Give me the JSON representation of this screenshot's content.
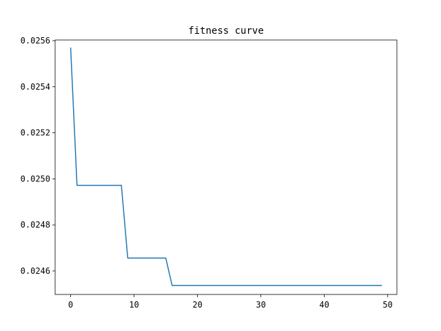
{
  "chart_data": {
    "type": "line",
    "title": "fitness curve",
    "xlabel": "",
    "ylabel": "",
    "xlim": [
      -2.45,
      51.45
    ],
    "ylim": [
      0.024498,
      0.025603
    ],
    "x_ticks": [
      0,
      10,
      20,
      30,
      40,
      50
    ],
    "x_tick_labels": [
      "0",
      "10",
      "20",
      "30",
      "40",
      "50"
    ],
    "y_ticks": [
      0.0246,
      0.0248,
      0.025,
      0.0252,
      0.0254,
      0.0256
    ],
    "y_tick_labels": [
      "0.0246",
      "0.0248",
      "0.0250",
      "0.0252",
      "0.0254",
      "0.0256"
    ],
    "grid": false,
    "series": [
      {
        "color": "#1f77b4",
        "x": [
          0,
          1,
          2,
          3,
          4,
          5,
          6,
          7,
          8,
          9,
          10,
          11,
          12,
          13,
          14,
          15,
          16,
          17,
          18,
          19,
          20,
          21,
          22,
          23,
          24,
          25,
          26,
          27,
          28,
          29,
          30,
          31,
          32,
          33,
          34,
          35,
          36,
          37,
          38,
          39,
          40,
          41,
          42,
          43,
          44,
          45,
          46,
          47,
          48,
          49
        ],
        "y": [
          0.025568,
          0.024972,
          0.024972,
          0.024972,
          0.024972,
          0.024972,
          0.024972,
          0.024972,
          0.024972,
          0.024656,
          0.024656,
          0.024656,
          0.024656,
          0.024656,
          0.024656,
          0.024656,
          0.024537,
          0.024537,
          0.024537,
          0.024537,
          0.024537,
          0.024537,
          0.024537,
          0.024537,
          0.024537,
          0.024537,
          0.024537,
          0.024537,
          0.024537,
          0.024537,
          0.024537,
          0.024537,
          0.024537,
          0.024537,
          0.024537,
          0.024537,
          0.024537,
          0.024537,
          0.024537,
          0.024537,
          0.024537,
          0.024537,
          0.024537,
          0.024537,
          0.024537,
          0.024537,
          0.024537,
          0.024537,
          0.024537,
          0.024537
        ]
      }
    ]
  }
}
